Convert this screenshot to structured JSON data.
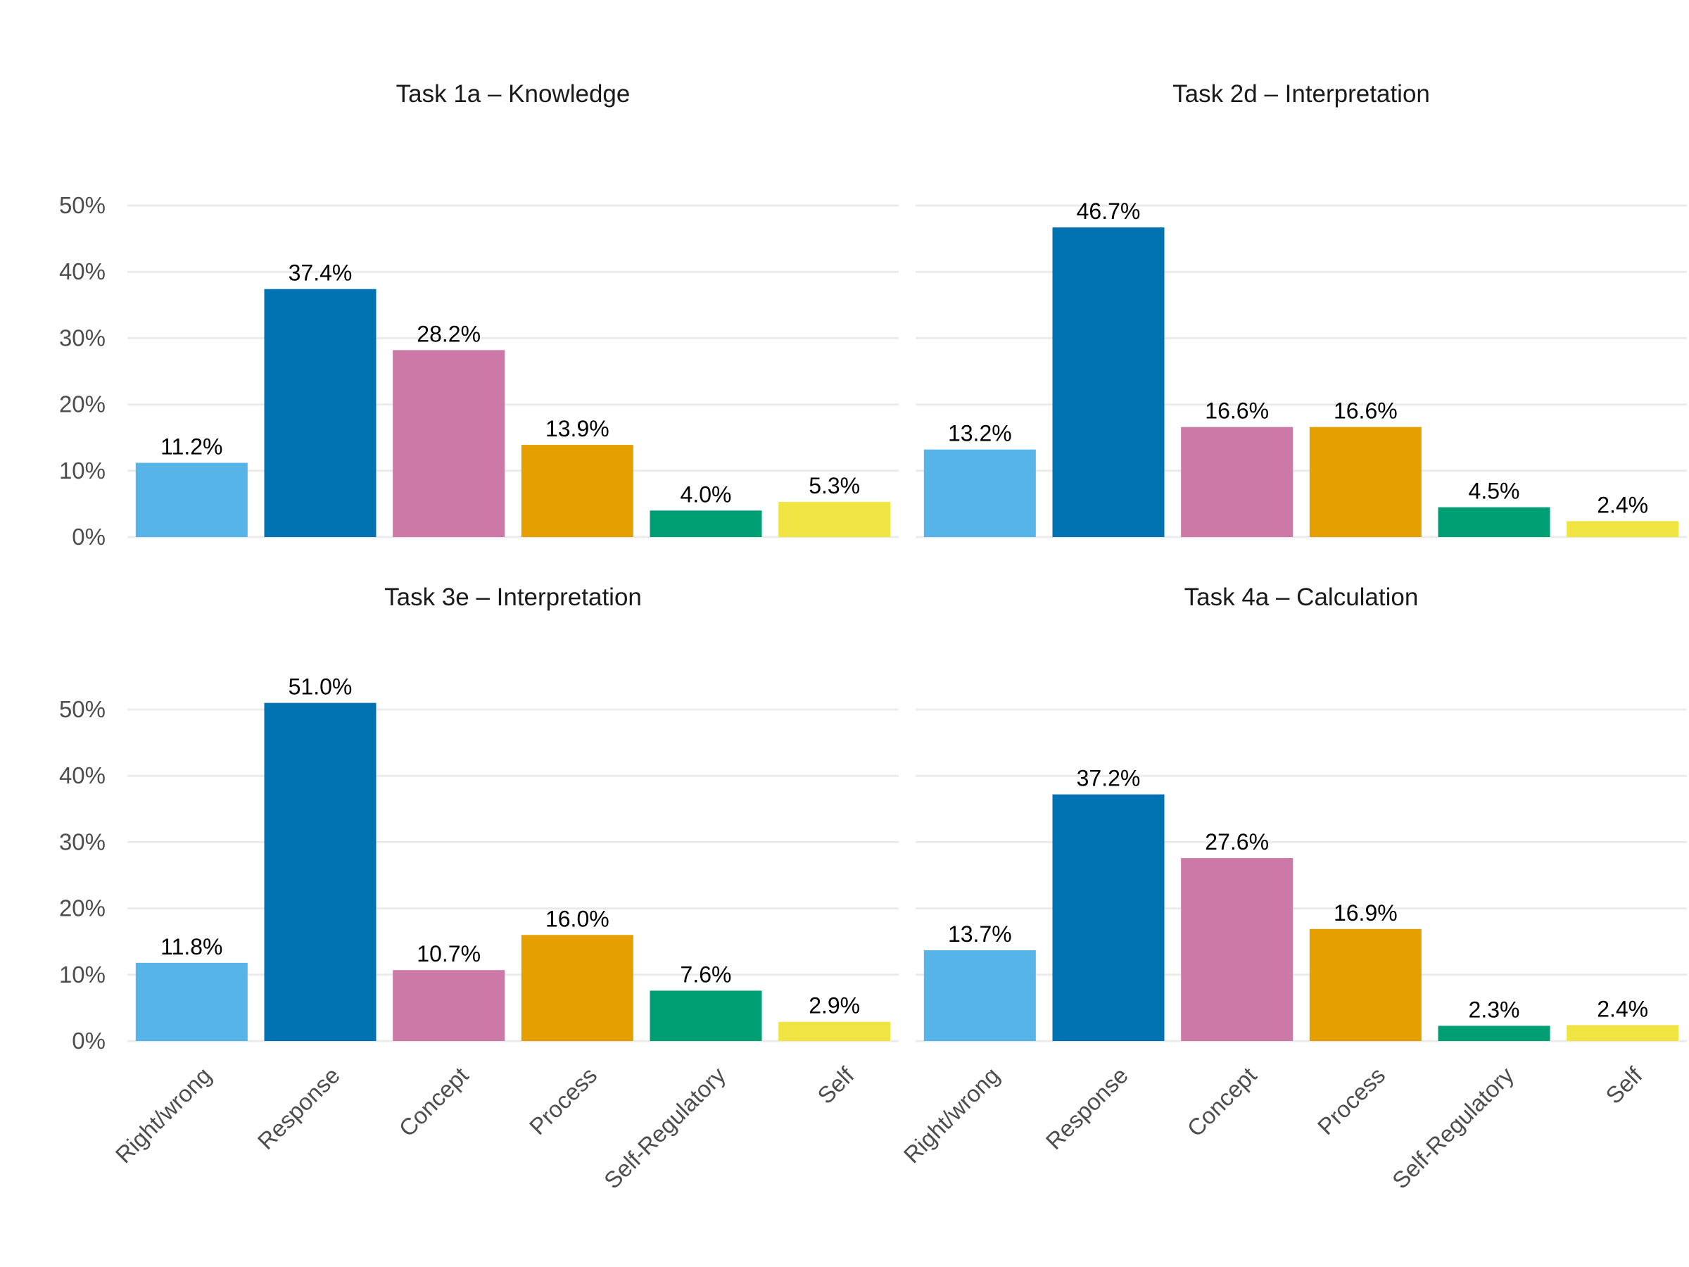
{
  "chart_data": {
    "type": "bar",
    "categories": [
      "Right/wrong",
      "Response",
      "Concept",
      "Process",
      "Self-Regulatory",
      "Self"
    ],
    "colors": [
      "#56B4E9",
      "#0072B2",
      "#CC79A7",
      "#E69F00",
      "#009E73",
      "#F0E442"
    ],
    "y_ticks": [
      "0%",
      "10%",
      "20%",
      "30%",
      "40%",
      "50%"
    ],
    "ylim": [
      0,
      55
    ],
    "grid": true,
    "legend": "none",
    "panels": [
      {
        "title": "Task 1a – Knowledge",
        "values": [
          11.2,
          37.4,
          28.2,
          13.9,
          4.0,
          5.3
        ],
        "labels": [
          "11.2%",
          "37.4%",
          "28.2%",
          "13.9%",
          "4.0%",
          "5.3%"
        ]
      },
      {
        "title": "Task 2d – Interpretation",
        "values": [
          13.2,
          46.7,
          16.6,
          16.6,
          4.5,
          2.4
        ],
        "labels": [
          "13.2%",
          "46.7%",
          "16.6%",
          "16.6%",
          "4.5%",
          "2.4%"
        ]
      },
      {
        "title": "Task 3e – Interpretation",
        "values": [
          11.8,
          51.0,
          10.7,
          16.0,
          7.6,
          2.9
        ],
        "labels": [
          "11.8%",
          "51.0%",
          "10.7%",
          "16.0%",
          "7.6%",
          "2.9%"
        ]
      },
      {
        "title": "Task 4a – Calculation",
        "values": [
          13.7,
          37.2,
          27.6,
          16.9,
          2.3,
          2.4
        ],
        "labels": [
          "13.7%",
          "37.2%",
          "27.6%",
          "16.9%",
          "2.3%",
          "2.4%"
        ]
      }
    ]
  }
}
